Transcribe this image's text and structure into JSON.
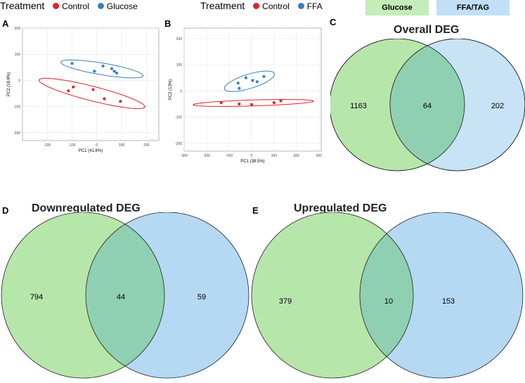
{
  "legend_a": {
    "title": "Treatment",
    "items": [
      {
        "label": "Control",
        "color": "#e0242b"
      },
      {
        "label": "Glucose",
        "color": "#3a7ec0"
      }
    ]
  },
  "legend_b": {
    "title": "Treatment",
    "items": [
      {
        "label": "Control",
        "color": "#e0242b"
      },
      {
        "label": "FFA",
        "color": "#3a7ec0"
      }
    ]
  },
  "venn_legend": [
    {
      "label": "Glucose",
      "color": "#c4ecb8"
    },
    {
      "label": "FFA/TAG",
      "color": "#c1dff7"
    }
  ],
  "panels": {
    "a": "A",
    "b": "B",
    "c": "C",
    "d": "D",
    "e": "E"
  },
  "colors": {
    "control": "#e0242b",
    "treated": "#3a7ec0",
    "glucose_fill": "#b7e6aa",
    "ffa_fill": "#b5d8f3",
    "overlap_fill": "#8fd0b3"
  },
  "chart_data": [
    {
      "type": "scatter",
      "panel": "A",
      "xlabel": "PC1 (41.8%)",
      "ylabel": "PC2 (18.8%)",
      "xlim": [
        -300,
        250
      ],
      "ylim": [
        -230,
        200
      ],
      "xticks": [
        "-200",
        "-100",
        "0",
        "100",
        "200"
      ],
      "yticks": [
        "-200",
        "-100",
        "0",
        "100",
        "200"
      ],
      "series": [
        {
          "name": "Control",
          "points": [
            [
              -115,
              -40
            ],
            [
              -95,
              -25
            ],
            [
              -15,
              -35
            ],
            [
              30,
              -70
            ],
            [
              95,
              -80
            ]
          ]
        },
        {
          "name": "Glucose",
          "points": [
            [
              -100,
              65
            ],
            [
              -10,
              35
            ],
            [
              25,
              55
            ],
            [
              60,
              45
            ],
            [
              70,
              35
            ],
            [
              80,
              28
            ]
          ]
        }
      ]
    },
    {
      "type": "scatter",
      "panel": "B",
      "xlabel": "PC1 (38.5%)",
      "ylabel": "PC2 (13%)",
      "xlim": [
        -300,
        310
      ],
      "ylim": [
        -230,
        240
      ],
      "xticks": [
        "-300",
        "-200",
        "-100",
        "0",
        "100",
        "200",
        "300"
      ],
      "yticks": [
        "-200",
        "-100",
        "0",
        "100",
        "200"
      ],
      "series": [
        {
          "name": "Control",
          "points": [
            [
              -135,
              -45
            ],
            [
              -55,
              -50
            ],
            [
              0,
              -52
            ],
            [
              100,
              -45
            ],
            [
              130,
              -38
            ]
          ]
        },
        {
          "name": "FFA",
          "points": [
            [
              -60,
              30
            ],
            [
              -55,
              10
            ],
            [
              -25,
              50
            ],
            [
              5,
              40
            ],
            [
              25,
              35
            ],
            [
              55,
              55
            ]
          ]
        }
      ]
    },
    {
      "type": "venn",
      "panel": "C",
      "title": "Overall DEG",
      "values": {
        "left": "1163",
        "both": "64",
        "right": "202"
      }
    },
    {
      "type": "venn",
      "panel": "D",
      "title": "Downregulated DEG",
      "values": {
        "left": "794",
        "both": "44",
        "right": "59"
      }
    },
    {
      "type": "venn",
      "panel": "E",
      "title": "Upregulated DEG",
      "values": {
        "left": "379",
        "both": "10",
        "right": "153"
      }
    }
  ]
}
